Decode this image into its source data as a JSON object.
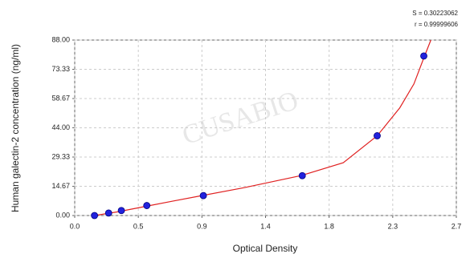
{
  "chart_data": {
    "type": "scatter",
    "title_annotations": [
      "S = 0.30223062",
      "r = 0.99999606"
    ],
    "watermark": "CUSABIO",
    "xlabel": "Optical Density",
    "ylabel": "Human galectin-2 concentration (ng/ml)",
    "x": [
      0.14,
      0.24,
      0.33,
      0.51,
      0.91,
      1.61,
      2.14,
      2.47
    ],
    "values": [
      0,
      1.25,
      2.5,
      5,
      10,
      20,
      40,
      80
    ],
    "color": "#2222dd",
    "curve": {
      "color": "#e02020",
      "x": [
        0.14,
        0.3,
        0.5,
        0.7,
        0.9,
        1.2,
        1.6,
        1.9,
        2.14,
        2.3,
        2.4,
        2.47,
        2.52
      ],
      "values": [
        0,
        1.8,
        4.6,
        7.3,
        10,
        14,
        20,
        26.5,
        40,
        54,
        66,
        79,
        88
      ]
    },
    "xlim": [
      0,
      2.7
    ],
    "xticks": [
      {
        "value": 0,
        "label": "0.0"
      },
      {
        "value": 0.45,
        "label": "0.5"
      },
      0.9,
      {
        "value": 1.35,
        "label": "1.4"
      },
      1.8,
      {
        "value": 2.25,
        "label": "2.3"
      },
      2.7
    ],
    "ylim": [
      0,
      88
    ],
    "yticks": [
      {
        "value": 0,
        "label": "0.00"
      },
      14.67,
      29.33,
      {
        "value": 44,
        "label": "44.00"
      },
      58.67,
      73.33,
      {
        "value": 88,
        "label": "88.00"
      }
    ],
    "grid": true
  }
}
